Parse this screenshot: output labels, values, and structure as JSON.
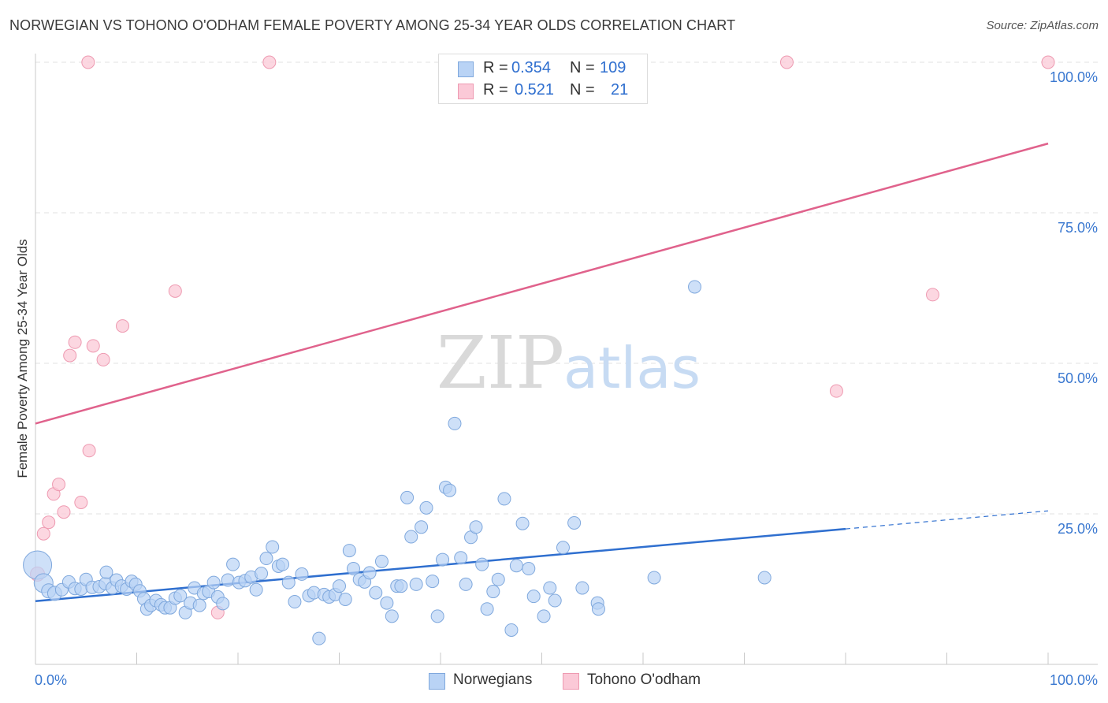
{
  "header": {
    "title": "NORWEGIAN VS TOHONO O'ODHAM FEMALE POVERTY AMONG 25-34 YEAR OLDS CORRELATION CHART",
    "source": "Source: ZipAtlas.com"
  },
  "watermark": {
    "zip": "ZIP",
    "atlas": "atlas"
  },
  "legend": {
    "rows": [
      {
        "r_label": "R =",
        "r_value": "0.354",
        "n_label": "N =",
        "n_value": "109"
      },
      {
        "r_label": "R =",
        "r_value": "0.521",
        "n_label": "N =",
        "n_value": "21"
      }
    ]
  },
  "bottom_legend": {
    "series_a": "Norwegians",
    "series_b": "Tohono O'odham"
  },
  "colors": {
    "blue_fill": "#b9d3f5",
    "blue_stroke": "#7fa8dd",
    "blue_line": "#2f6fcf",
    "pink_fill": "#fbc9d7",
    "pink_stroke": "#ee9ab1",
    "pink_line": "#e0628c",
    "grid": "#e2e2e2",
    "axis_text": "#3a78d0"
  },
  "chart_data": {
    "type": "scatter",
    "title": "NORWEGIAN VS TOHONO O'ODHAM FEMALE POVERTY AMONG 25-34 YEAR OLDS CORRELATION CHART",
    "xlabel": "",
    "ylabel": "Female Poverty Among 25-34 Year Olds",
    "xlim": [
      0,
      100
    ],
    "ylim": [
      0,
      100
    ],
    "x_tick_labels": [
      "0.0%",
      "100.0%"
    ],
    "y_ticks": [
      25,
      50,
      75,
      100
    ],
    "y_tick_labels": [
      "25.0%",
      "50.0%",
      "75.0%",
      "100.0%"
    ],
    "series": [
      {
        "name": "Norwegians",
        "r": 0.354,
        "n": 109,
        "trend": {
          "x0": 0,
          "y0": 10.5,
          "x1": 80,
          "y1": 22.5,
          "dash_x1": 100,
          "dash_y1": 25.5
        },
        "points": [
          [
            0.2,
            16.5,
            18
          ],
          [
            0.8,
            13.5,
            12
          ],
          [
            1.3,
            12.2,
            9
          ],
          [
            1.9,
            11.8,
            9
          ],
          [
            2.6,
            12.4,
            8
          ],
          [
            3.3,
            13.7,
            8
          ],
          [
            3.9,
            12.6,
            8
          ],
          [
            4.5,
            12.5,
            8
          ],
          [
            5.0,
            14.1,
            8
          ],
          [
            5.6,
            12.8,
            8
          ],
          [
            6.3,
            12.9,
            8
          ],
          [
            6.9,
            13.4,
            8
          ],
          [
            7.0,
            15.3,
            8
          ],
          [
            7.6,
            12.7,
            8
          ],
          [
            8.0,
            14.0,
            8
          ],
          [
            8.5,
            13.0,
            8
          ],
          [
            9.0,
            12.5,
            8
          ],
          [
            9.5,
            13.8,
            8
          ],
          [
            9.9,
            13.3,
            8
          ],
          [
            10.3,
            12.2,
            8
          ],
          [
            10.7,
            10.9,
            8
          ],
          [
            11.0,
            9.2,
            8
          ],
          [
            11.4,
            9.8,
            8
          ],
          [
            11.9,
            10.6,
            8
          ],
          [
            12.4,
            9.9,
            8
          ],
          [
            12.8,
            9.4,
            8
          ],
          [
            13.3,
            9.4,
            8
          ],
          [
            13.8,
            11.0,
            8
          ],
          [
            14.3,
            11.4,
            8
          ],
          [
            14.8,
            8.6,
            8
          ],
          [
            15.3,
            10.2,
            8
          ],
          [
            15.7,
            12.7,
            8
          ],
          [
            16.2,
            9.8,
            8
          ],
          [
            16.6,
            11.8,
            8
          ],
          [
            17.1,
            12.1,
            8
          ],
          [
            17.6,
            13.6,
            8
          ],
          [
            18.0,
            11.2,
            8
          ],
          [
            18.5,
            10.1,
            8
          ],
          [
            19.0,
            14.0,
            8
          ],
          [
            19.5,
            16.6,
            8
          ],
          [
            20.1,
            13.6,
            8
          ],
          [
            20.7,
            13.9,
            8
          ],
          [
            21.3,
            14.5,
            8
          ],
          [
            21.8,
            12.4,
            8
          ],
          [
            22.3,
            15.1,
            8
          ],
          [
            22.8,
            17.6,
            8
          ],
          [
            23.4,
            19.5,
            8
          ],
          [
            24.0,
            16.3,
            8
          ],
          [
            24.4,
            16.6,
            8
          ],
          [
            25.0,
            13.6,
            8
          ],
          [
            25.6,
            10.4,
            8
          ],
          [
            26.3,
            15.0,
            8
          ],
          [
            27.0,
            11.4,
            8
          ],
          [
            27.5,
            11.9,
            8
          ],
          [
            28.0,
            4.3,
            8
          ],
          [
            28.5,
            11.6,
            8
          ],
          [
            29.0,
            11.2,
            8
          ],
          [
            29.6,
            11.6,
            8
          ],
          [
            30.0,
            13.0,
            8
          ],
          [
            30.6,
            10.8,
            8
          ],
          [
            31.0,
            18.9,
            8
          ],
          [
            31.4,
            15.9,
            8
          ],
          [
            32.0,
            14.1,
            8
          ],
          [
            32.5,
            13.7,
            8
          ],
          [
            33.0,
            15.2,
            8
          ],
          [
            33.6,
            11.9,
            8
          ],
          [
            34.2,
            17.1,
            8
          ],
          [
            34.7,
            10.2,
            8
          ],
          [
            35.2,
            8.0,
            8
          ],
          [
            35.7,
            13.0,
            8
          ],
          [
            36.1,
            13.0,
            8
          ],
          [
            36.7,
            27.7,
            8
          ],
          [
            37.1,
            21.2,
            8
          ],
          [
            37.6,
            13.3,
            8
          ],
          [
            38.1,
            22.8,
            8
          ],
          [
            38.6,
            26.0,
            8
          ],
          [
            39.2,
            13.8,
            8
          ],
          [
            39.7,
            8.0,
            8
          ],
          [
            40.2,
            17.4,
            8
          ],
          [
            40.5,
            29.4,
            8
          ],
          [
            40.9,
            28.9,
            8
          ],
          [
            41.4,
            40.0,
            8
          ],
          [
            42.0,
            17.7,
            8
          ],
          [
            42.5,
            13.3,
            8
          ],
          [
            43.0,
            21.1,
            8
          ],
          [
            43.5,
            22.8,
            8
          ],
          [
            44.1,
            16.6,
            8
          ],
          [
            44.6,
            9.2,
            8
          ],
          [
            45.2,
            12.1,
            8
          ],
          [
            45.7,
            14.1,
            8
          ],
          [
            46.3,
            27.5,
            8
          ],
          [
            47.0,
            5.7,
            8
          ],
          [
            47.5,
            16.4,
            8
          ],
          [
            48.1,
            23.4,
            8
          ],
          [
            48.7,
            15.9,
            8
          ],
          [
            49.2,
            11.3,
            8
          ],
          [
            50.2,
            8.0,
            8
          ],
          [
            50.8,
            12.7,
            8
          ],
          [
            51.3,
            10.6,
            8
          ],
          [
            52.1,
            19.4,
            8
          ],
          [
            53.2,
            23.5,
            8
          ],
          [
            54.0,
            12.7,
            8
          ],
          [
            55.5,
            10.2,
            8
          ],
          [
            55.6,
            9.2,
            8
          ],
          [
            61.1,
            14.4,
            8
          ],
          [
            65.1,
            62.7,
            8
          ],
          [
            72.0,
            14.4,
            8
          ]
        ]
      },
      {
        "name": "Tohono O'odham",
        "r": 0.521,
        "n": 21,
        "trend": {
          "x0": 0,
          "y0": 40.0,
          "x1": 100,
          "y1": 86.5
        },
        "points": [
          [
            0.2,
            15.0,
            9
          ],
          [
            0.8,
            21.7,
            8
          ],
          [
            1.3,
            23.6,
            8
          ],
          [
            1.8,
            28.3,
            8
          ],
          [
            2.3,
            29.9,
            8
          ],
          [
            2.8,
            25.3,
            8
          ],
          [
            3.4,
            51.3,
            8
          ],
          [
            3.9,
            53.5,
            8
          ],
          [
            4.5,
            26.9,
            8
          ],
          [
            5.2,
            100.0,
            8
          ],
          [
            5.3,
            35.5,
            8
          ],
          [
            5.7,
            52.9,
            8
          ],
          [
            6.7,
            50.6,
            8
          ],
          [
            8.6,
            56.2,
            8
          ],
          [
            13.8,
            62.0,
            8
          ],
          [
            18.0,
            8.6,
            8
          ],
          [
            23.1,
            100.0,
            8
          ],
          [
            74.2,
            100.0,
            8
          ],
          [
            79.1,
            45.4,
            8
          ],
          [
            88.6,
            61.4,
            8
          ],
          [
            100.0,
            100.0,
            8
          ]
        ]
      }
    ]
  }
}
